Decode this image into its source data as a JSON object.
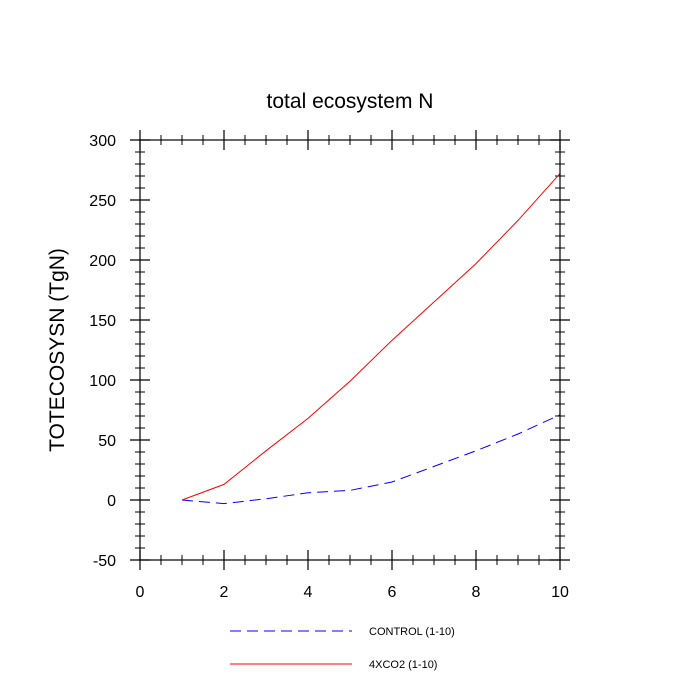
{
  "chart_data": {
    "type": "line",
    "title": "total ecosystem N",
    "xlabel": "",
    "ylabel": "TOTECOSYSN  (TgN)",
    "xlim": [
      0,
      10
    ],
    "ylim": [
      -50,
      300
    ],
    "xticks": [
      0,
      2,
      4,
      6,
      8,
      10
    ],
    "yticks": [
      -50,
      0,
      50,
      100,
      150,
      200,
      250,
      300
    ],
    "x": [
      1,
      2,
      3,
      4,
      5,
      6,
      7,
      8,
      9,
      10
    ],
    "series": [
      {
        "name": "CONTROL (1-10)",
        "color": "#0000ff",
        "dash": "dashed",
        "values": [
          0,
          -3,
          1,
          6,
          8,
          15,
          28,
          41,
          55,
          71
        ]
      },
      {
        "name": "4XCO2 (1-10)",
        "color": "#ff0000",
        "dash": "solid",
        "values": [
          0,
          13,
          41,
          68,
          99,
          133,
          165,
          197,
          233,
          272
        ]
      }
    ]
  }
}
